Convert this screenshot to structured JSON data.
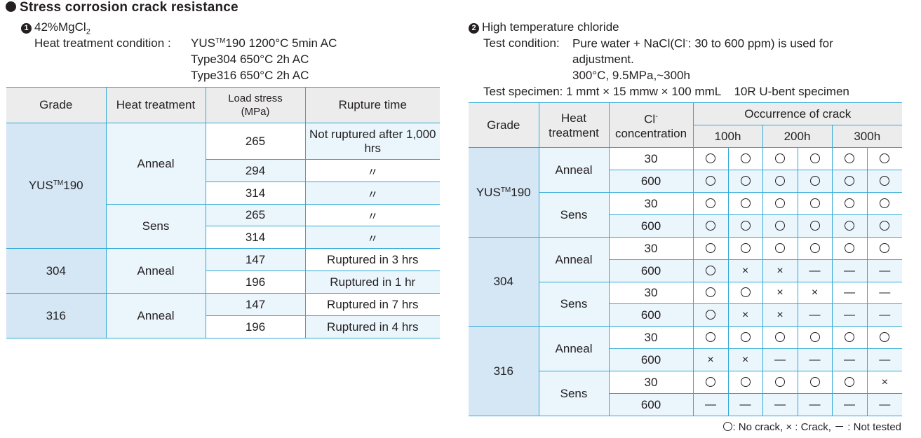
{
  "title": "Stress corrosion crack resistance",
  "left": {
    "number": "1",
    "heading": "42%MgCl",
    "heading_sub": "2",
    "cond_label": "Heat treatment condition :",
    "cond_lines": {
      "l1a": "YUS",
      "l1tm": "TM",
      "l1b": "190 1200°C 5min AC",
      "l2": "Type304 650°C 2h AC",
      "l3": "Type316 650°C 2h AC"
    },
    "headers": {
      "grade": "Grade",
      "heat": "Heat treatment",
      "load1": "Load stress",
      "load2": "(MPa)",
      "rupture": "Rupture time"
    },
    "grades": {
      "g1a": "YUS",
      "g1tm": "TM",
      "g1b": "190",
      "g2": "304",
      "g3": "316"
    },
    "treatments": {
      "anneal": "Anneal",
      "sens": "Sens"
    },
    "rows": [
      {
        "stress": "265",
        "time": "Not ruptured after 1,000 hrs"
      },
      {
        "stress": "294",
        "time": "〃"
      },
      {
        "stress": "314",
        "time": "〃"
      },
      {
        "stress": "265",
        "time": "〃"
      },
      {
        "stress": "314",
        "time": "〃"
      },
      {
        "stress": "147",
        "time": "Ruptured in 3 hrs"
      },
      {
        "stress": "196",
        "time": "Ruptured in 1 hr"
      },
      {
        "stress": "147",
        "time": "Ruptured in 7 hrs"
      },
      {
        "stress": "196",
        "time": "Ruptured in 4 hrs"
      }
    ]
  },
  "right": {
    "number": "2",
    "heading": "High temperature chloride",
    "test_label": "Test condition:",
    "test_line1a": "Pure water + NaCl(Cl",
    "test_line1sup": "-",
    "test_line1b": ": 30 to 600 ppm) is used for",
    "test_line2": "adjustment.",
    "test_line3": "300°C, 9.5MPa,~300h",
    "spec_label": "Test specimen:",
    "spec_value": "1 mmt × 15 mmw × 100 mmL    10R U-bent specimen",
    "headers": {
      "grade": "Grade",
      "heat1": "Heat",
      "heat2": "treatment",
      "cl1": "Cl",
      "cl1sup": "-",
      "cl2": "concentration",
      "occ": "Occurrence of crack",
      "h100": "100h",
      "h200": "200h",
      "h300": "300h"
    },
    "grades": {
      "g1a": "YUS",
      "g1tm": "TM",
      "g1b": "190",
      "g2": "304",
      "g3": "316"
    },
    "treatments": {
      "anneal": "Anneal",
      "sens": "Sens"
    },
    "rows": [
      {
        "conc": "30",
        "r": [
          "o",
          "o",
          "o",
          "o",
          "o",
          "o"
        ]
      },
      {
        "conc": "600",
        "r": [
          "o",
          "o",
          "o",
          "o",
          "o",
          "o"
        ]
      },
      {
        "conc": "30",
        "r": [
          "o",
          "o",
          "o",
          "o",
          "o",
          "o"
        ]
      },
      {
        "conc": "600",
        "r": [
          "o",
          "o",
          "o",
          "o",
          "o",
          "o"
        ]
      },
      {
        "conc": "30",
        "r": [
          "o",
          "o",
          "o",
          "o",
          "o",
          "o"
        ]
      },
      {
        "conc": "600",
        "r": [
          "o",
          "×",
          "×",
          "—",
          "—",
          "—"
        ]
      },
      {
        "conc": "30",
        "r": [
          "o",
          "o",
          "×",
          "×",
          "—",
          "—"
        ]
      },
      {
        "conc": "600",
        "r": [
          "o",
          "×",
          "×",
          "—",
          "—",
          "—"
        ]
      },
      {
        "conc": "30",
        "r": [
          "o",
          "o",
          "o",
          "o",
          "o",
          "o"
        ]
      },
      {
        "conc": "600",
        "r": [
          "×",
          "×",
          "—",
          "—",
          "—",
          "—"
        ]
      },
      {
        "conc": "30",
        "r": [
          "o",
          "o",
          "o",
          "o",
          "o",
          "×"
        ]
      },
      {
        "conc": "600",
        "r": [
          "—",
          "—",
          "—",
          "—",
          "—",
          "—"
        ]
      }
    ],
    "legend": {
      "no_crack": ": No crack, ",
      "crack_sym": "×",
      "crack": " : Crack, ",
      "nt_sym": "－",
      "not_tested": " : Not tested"
    }
  }
}
